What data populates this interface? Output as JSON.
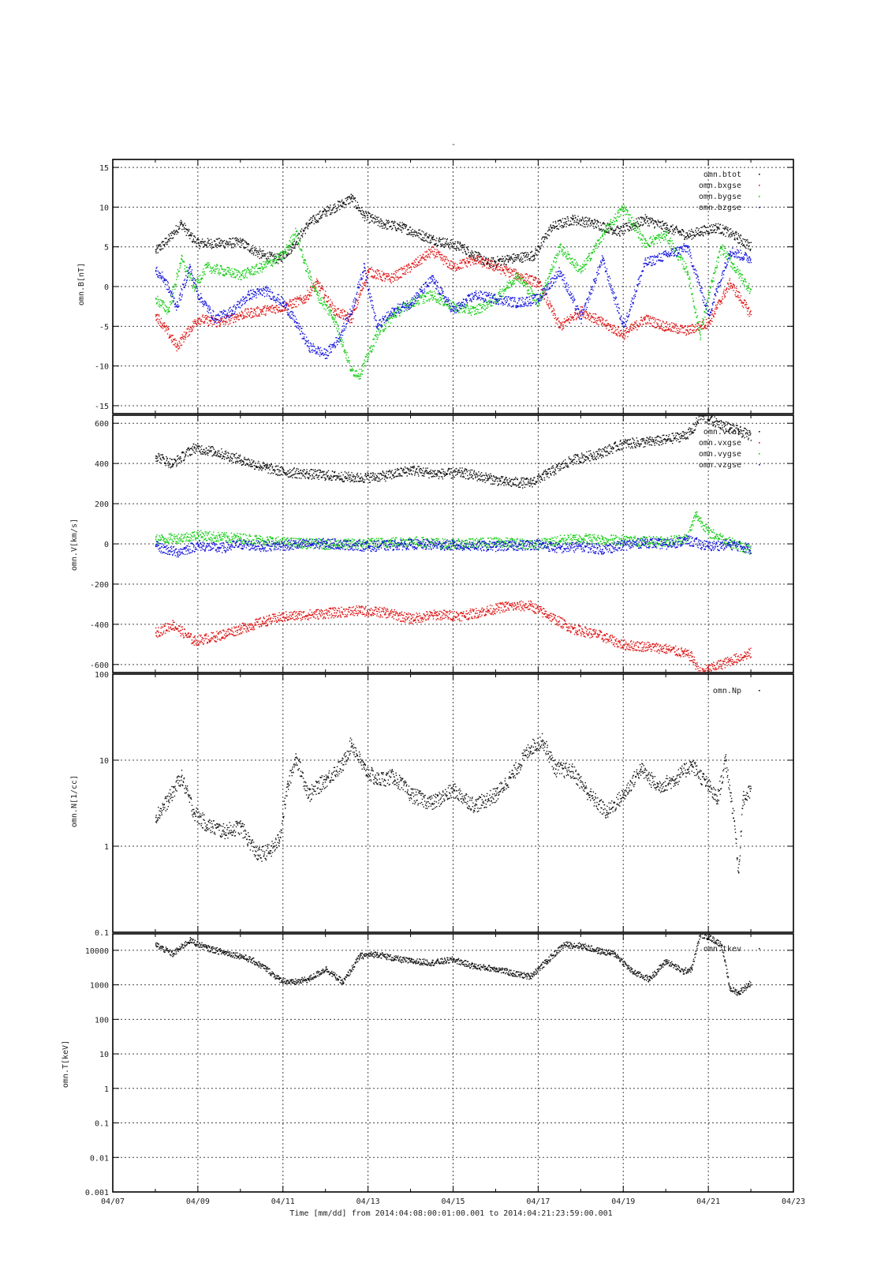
{
  "page": {
    "top_mark": "-",
    "footer": "Time [mm/dd]  from 2014:04:08:00:01:00.001  to  2014:04:21:23:59:00.001"
  },
  "colors": {
    "black": "#111111",
    "red": "#dd1111",
    "green": "#11cc11",
    "blue": "#1111dd",
    "grid": "#444444"
  },
  "chart_data": [
    {
      "id": "b",
      "type": "scatter",
      "ylabel": "omn.B[nT]",
      "yscale": "linear",
      "ylim": [
        -16,
        16
      ],
      "yticks": [
        15,
        10,
        5,
        0,
        -5,
        -10,
        -15
      ],
      "ytick_labels": [
        "15",
        "10",
        "5",
        "0",
        "-5",
        "-10",
        "-15"
      ],
      "xlim": [
        "04/07",
        "04/23"
      ],
      "grid": true,
      "legend": "top-right",
      "series": [
        {
          "name": "omn.btot",
          "color": "black",
          "x": [
            8.0,
            8.3,
            8.6,
            8.8,
            9.0,
            9.5,
            10.0,
            10.5,
            10.9,
            11.2,
            11.6,
            12.0,
            12.4,
            12.6,
            12.9,
            13.3,
            13.8,
            14.5,
            15.2,
            15.8,
            16.3,
            16.9,
            17.3,
            17.8,
            18.3,
            18.9,
            19.5,
            20.0,
            20.5,
            20.8,
            21.2,
            21.6,
            22.0
          ],
          "y": [
            4.5,
            6.0,
            8.0,
            6.5,
            5.5,
            5.5,
            5.6,
            4.0,
            3.5,
            5.0,
            8.0,
            9.5,
            10.5,
            11.2,
            9.0,
            8.0,
            7.5,
            6.0,
            5.0,
            3.0,
            3.5,
            4.0,
            7.5,
            8.5,
            8.0,
            7.0,
            8.5,
            7.5,
            6.5,
            7.0,
            7.5,
            6.5,
            5.0
          ]
        },
        {
          "name": "omn.bxgse",
          "color": "red",
          "x": [
            8.0,
            8.2,
            8.5,
            8.7,
            9.0,
            9.5,
            10.0,
            10.5,
            11.0,
            11.5,
            11.8,
            12.2,
            12.6,
            13.0,
            13.5,
            14.0,
            14.5,
            15.0,
            15.5,
            16.0,
            16.5,
            17.0,
            17.5,
            18.0,
            18.5,
            19.0,
            19.5,
            20.0,
            20.5,
            21.0,
            21.5,
            22.0
          ],
          "y": [
            -3.5,
            -5.0,
            -7.5,
            -6.0,
            -4.0,
            -4.5,
            -3.5,
            -3.0,
            -2.5,
            -1.5,
            0.5,
            -3.0,
            -4.0,
            2.0,
            1.0,
            2.5,
            4.5,
            2.5,
            3.5,
            2.5,
            1.5,
            0.5,
            -5.0,
            -3.0,
            -4.5,
            -6.0,
            -4.0,
            -5.0,
            -5.5,
            -4.5,
            0.5,
            -3.5
          ]
        },
        {
          "name": "omn.bygse",
          "color": "green",
          "x": [
            8.0,
            8.3,
            8.6,
            8.9,
            9.2,
            9.6,
            10.0,
            10.5,
            11.0,
            11.3,
            11.5,
            11.8,
            12.2,
            12.6,
            12.8,
            13.2,
            13.6,
            14.0,
            14.5,
            15.0,
            15.5,
            16.0,
            16.5,
            17.0,
            17.5,
            18.0,
            18.5,
            19.0,
            19.5,
            20.0,
            20.5,
            20.8,
            21.0,
            21.3,
            21.6,
            22.0
          ],
          "y": [
            -1.5,
            -3.0,
            3.5,
            0.0,
            2.5,
            2.0,
            1.5,
            2.5,
            4.0,
            7.0,
            3.0,
            -1.0,
            -4.0,
            -10.5,
            -11.0,
            -6.0,
            -3.5,
            -2.0,
            -1.0,
            -2.5,
            -3.0,
            -1.5,
            1.5,
            -2.0,
            5.0,
            2.0,
            6.5,
            10.0,
            5.5,
            6.5,
            2.0,
            -6.0,
            -1.0,
            5.0,
            2.5,
            -0.5
          ]
        },
        {
          "name": "omn.bzgse",
          "color": "blue",
          "x": [
            8.0,
            8.2,
            8.5,
            8.8,
            9.0,
            9.4,
            9.8,
            10.2,
            10.6,
            11.0,
            11.3,
            11.6,
            12.0,
            12.3,
            12.6,
            12.9,
            13.2,
            13.6,
            14.0,
            14.5,
            15.0,
            15.5,
            16.0,
            16.5,
            17.0,
            17.5,
            18.0,
            18.5,
            19.0,
            19.5,
            20.0,
            20.5,
            21.0,
            21.5,
            22.0
          ],
          "y": [
            2.0,
            1.0,
            -2.5,
            2.5,
            -1.0,
            -4.0,
            -3.0,
            -1.0,
            -0.5,
            -2.0,
            -4.5,
            -7.5,
            -8.5,
            -6.5,
            -3.0,
            2.5,
            -5.0,
            -3.0,
            -2.0,
            1.0,
            -3.0,
            -1.0,
            -1.5,
            -2.0,
            -1.5,
            2.0,
            -4.0,
            3.5,
            -5.0,
            3.0,
            4.0,
            5.0,
            -3.5,
            4.5,
            3.5
          ]
        }
      ]
    },
    {
      "id": "v",
      "type": "scatter",
      "ylabel": "omn.V[km/s]",
      "yscale": "linear",
      "ylim": [
        -640,
        640
      ],
      "yticks": [
        600,
        400,
        200,
        0,
        -200,
        -400,
        -600
      ],
      "ytick_labels": [
        "600",
        "400",
        "200",
        "0",
        "-200",
        "-400",
        "-600"
      ],
      "xlim": [
        "04/07",
        "04/23"
      ],
      "grid": true,
      "legend": "top-right",
      "series": [
        {
          "name": "omn.vtot",
          "color": "black",
          "x": [
            8.0,
            8.4,
            8.9,
            9.4,
            10.0,
            10.6,
            11.0,
            11.6,
            12.2,
            12.8,
            13.4,
            14.0,
            14.6,
            15.2,
            15.8,
            16.2,
            16.8,
            17.2,
            17.8,
            18.4,
            19.0,
            19.6,
            20.0,
            20.4,
            20.6,
            20.8,
            21.0,
            21.5,
            22.0
          ],
          "y": [
            440,
            400,
            480,
            460,
            420,
            380,
            360,
            350,
            340,
            330,
            340,
            370,
            350,
            355,
            330,
            310,
            305,
            350,
            420,
            450,
            500,
            510,
            520,
            540,
            560,
            640,
            620,
            580,
            540
          ]
        },
        {
          "name": "omn.vxgse",
          "color": "red",
          "x": [
            8.0,
            8.4,
            8.9,
            9.4,
            10.0,
            10.6,
            11.0,
            11.6,
            12.2,
            12.8,
            13.4,
            14.0,
            14.6,
            15.2,
            15.8,
            16.2,
            16.8,
            17.2,
            17.8,
            18.4,
            19.0,
            19.6,
            20.0,
            20.4,
            20.6,
            20.8,
            21.0,
            21.5,
            22.0
          ],
          "y": [
            -440,
            -400,
            -480,
            -460,
            -420,
            -380,
            -360,
            -350,
            -340,
            -330,
            -340,
            -370,
            -350,
            -355,
            -330,
            -310,
            -305,
            -350,
            -420,
            -450,
            -500,
            -510,
            -520,
            -540,
            -560,
            -640,
            -620,
            -580,
            -540
          ]
        },
        {
          "name": "omn.vygse",
          "color": "green",
          "x": [
            8.0,
            8.5,
            9.0,
            9.5,
            10.0,
            10.5,
            11.0,
            12.0,
            13.0,
            14.0,
            15.0,
            16.0,
            17.0,
            17.5,
            18.0,
            18.5,
            19.0,
            19.5,
            20.0,
            20.5,
            20.7,
            21.0,
            21.5,
            22.0
          ],
          "y": [
            25,
            30,
            45,
            35,
            30,
            20,
            10,
            0,
            5,
            15,
            0,
            10,
            0,
            20,
            30,
            25,
            20,
            15,
            15,
            30,
            150,
            60,
            10,
            -30
          ]
        },
        {
          "name": "omn.vzgse",
          "color": "blue",
          "x": [
            8.0,
            8.5,
            9.0,
            9.5,
            10.0,
            10.5,
            11.0,
            12.0,
            13.0,
            14.0,
            15.0,
            16.0,
            17.0,
            17.5,
            18.0,
            18.5,
            19.0,
            19.5,
            20.0,
            20.5,
            21.0,
            21.5,
            22.0
          ],
          "y": [
            -10,
            -40,
            -5,
            -20,
            0,
            -10,
            -5,
            5,
            -10,
            0,
            -5,
            -10,
            0,
            -20,
            -10,
            -25,
            -5,
            10,
            0,
            20,
            -10,
            0,
            -20
          ]
        }
      ]
    },
    {
      "id": "n",
      "type": "scatter",
      "ylabel": "omn.N[1/cc]",
      "yscale": "log",
      "ylim": [
        0.1,
        100
      ],
      "yticks": [
        100,
        10,
        1,
        0.1
      ],
      "ytick_labels": [
        "100",
        "10",
        "1",
        "0.1"
      ],
      "xlim": [
        "04/07",
        "04/23"
      ],
      "grid": true,
      "legend": "top-right",
      "series": [
        {
          "name": "omn.Np",
          "color": "black",
          "x": [
            8.0,
            8.3,
            8.6,
            8.9,
            9.2,
            9.6,
            10.0,
            10.4,
            10.7,
            10.9,
            11.1,
            11.3,
            11.6,
            12.0,
            12.4,
            12.6,
            12.9,
            13.2,
            13.6,
            14.0,
            14.5,
            15.0,
            15.5,
            16.0,
            16.4,
            16.8,
            17.1,
            17.4,
            17.8,
            18.2,
            18.6,
            19.0,
            19.4,
            19.8,
            20.2,
            20.6,
            21.0,
            21.2,
            21.4,
            21.6,
            21.7,
            21.8,
            22.0
          ],
          "y": [
            2.2,
            3.5,
            6.5,
            2.5,
            1.8,
            1.5,
            1.7,
            0.8,
            0.9,
            1.2,
            5.0,
            11.0,
            4.0,
            6.0,
            9.0,
            16.0,
            8.0,
            6.0,
            6.5,
            4.0,
            3.2,
            4.5,
            3.0,
            4.0,
            7.0,
            14.0,
            17.0,
            8.0,
            7.5,
            4.0,
            2.5,
            4.0,
            8.0,
            5.0,
            6.0,
            9.0,
            5.0,
            3.5,
            10.0,
            2.0,
            0.5,
            3.5,
            4.5
          ]
        }
      ]
    },
    {
      "id": "t",
      "type": "scatter",
      "ylabel": "omn.T[keV]",
      "yscale": "log",
      "ylim": [
        0.001,
        30000
      ],
      "yticks": [
        10000,
        1000,
        100,
        10,
        1,
        0.1,
        0.01,
        0.001
      ],
      "ytick_labels": [
        "10000",
        "1000",
        "100",
        "10",
        "1",
        "0.1",
        "0.01",
        "0.001"
      ],
      "xlim": [
        "04/07",
        "04/23"
      ],
      "grid": true,
      "legend": "top-right",
      "series": [
        {
          "name": "omn.tkev",
          "color": "black",
          "x": [
            8.0,
            8.4,
            8.8,
            9.2,
            9.6,
            10.0,
            10.3,
            10.6,
            10.9,
            11.2,
            11.6,
            12.0,
            12.4,
            12.8,
            13.2,
            13.6,
            14.0,
            14.5,
            15.0,
            15.5,
            16.0,
            16.4,
            16.8,
            17.2,
            17.6,
            18.0,
            18.4,
            18.8,
            19.2,
            19.6,
            20.0,
            20.4,
            20.6,
            20.8,
            21.0,
            21.3,
            21.5,
            21.7,
            22.0
          ],
          "y": [
            15000,
            8000,
            20000,
            12000,
            9000,
            7000,
            5000,
            3000,
            1500,
            1200,
            1500,
            3000,
            1200,
            7000,
            8000,
            6000,
            5000,
            4500,
            5500,
            3500,
            3000,
            2200,
            1800,
            5000,
            15000,
            14000,
            10000,
            8000,
            2500,
            1500,
            5000,
            2500,
            3000,
            30000,
            25000,
            15000,
            800,
            600,
            1200
          ]
        }
      ]
    }
  ],
  "x_axis": {
    "tick_labels": [
      "04/07",
      "04/09",
      "04/11",
      "04/13",
      "04/15",
      "04/17",
      "04/19",
      "04/21",
      "04/23"
    ]
  }
}
